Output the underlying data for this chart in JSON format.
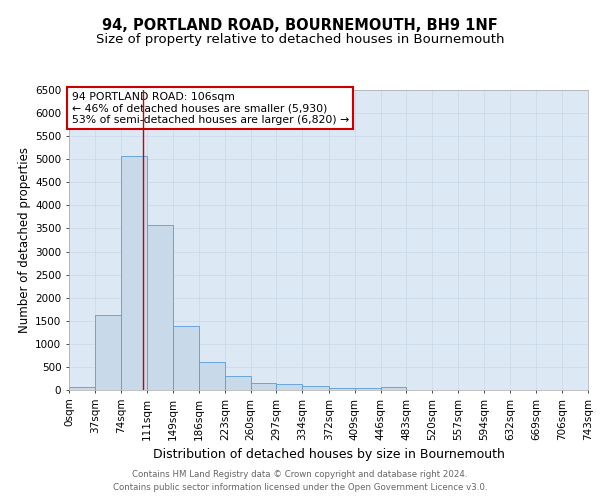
{
  "title": "94, PORTLAND ROAD, BOURNEMOUTH, BH9 1NF",
  "subtitle": "Size of property relative to detached houses in Bournemouth",
  "xlabel": "Distribution of detached houses by size in Bournemouth",
  "ylabel": "Number of detached properties",
  "footnote1": "Contains HM Land Registry data © Crown copyright and database right 2024.",
  "footnote2": "Contains public sector information licensed under the Open Government Licence v3.0.",
  "annotation_line1": "94 PORTLAND ROAD: 106sqm",
  "annotation_line2": "← 46% of detached houses are smaller (5,930)",
  "annotation_line3": "53% of semi-detached houses are larger (6,820) →",
  "bar_edges": [
    0,
    37,
    74,
    111,
    149,
    186,
    223,
    260,
    297,
    334,
    372,
    409,
    446,
    483,
    520,
    557,
    594,
    632,
    669,
    706,
    743
  ],
  "bar_heights": [
    75,
    1620,
    5060,
    3580,
    1390,
    610,
    300,
    155,
    140,
    95,
    45,
    35,
    60,
    0,
    0,
    0,
    0,
    0,
    0,
    0
  ],
  "bar_color": "#c8d9ea",
  "bar_edgecolor": "#5b9bd5",
  "red_line_x": 106,
  "ylim": [
    0,
    6500
  ],
  "yticks": [
    0,
    500,
    1000,
    1500,
    2000,
    2500,
    3000,
    3500,
    4000,
    4500,
    5000,
    5500,
    6000,
    6500
  ],
  "xtick_labels": [
    "0sqm",
    "37sqm",
    "74sqm",
    "111sqm",
    "149sqm",
    "186sqm",
    "223sqm",
    "260sqm",
    "297sqm",
    "334sqm",
    "372sqm",
    "409sqm",
    "446sqm",
    "483sqm",
    "520sqm",
    "557sqm",
    "594sqm",
    "632sqm",
    "669sqm",
    "706sqm",
    "743sqm"
  ],
  "grid_color": "#c8d8e8",
  "background_color": "#ffffff",
  "ax_background": "#dce9f5",
  "title_fontsize": 10.5,
  "subtitle_fontsize": 9.5,
  "xlabel_fontsize": 9,
  "ylabel_fontsize": 8.5,
  "tick_fontsize": 7.5,
  "annotation_fontsize": 7.8,
  "annotation_box_edgecolor": "#cc0000",
  "red_line_color": "#cc0000",
  "footnote_fontsize": 6.2,
  "footnote_color": "#666666"
}
